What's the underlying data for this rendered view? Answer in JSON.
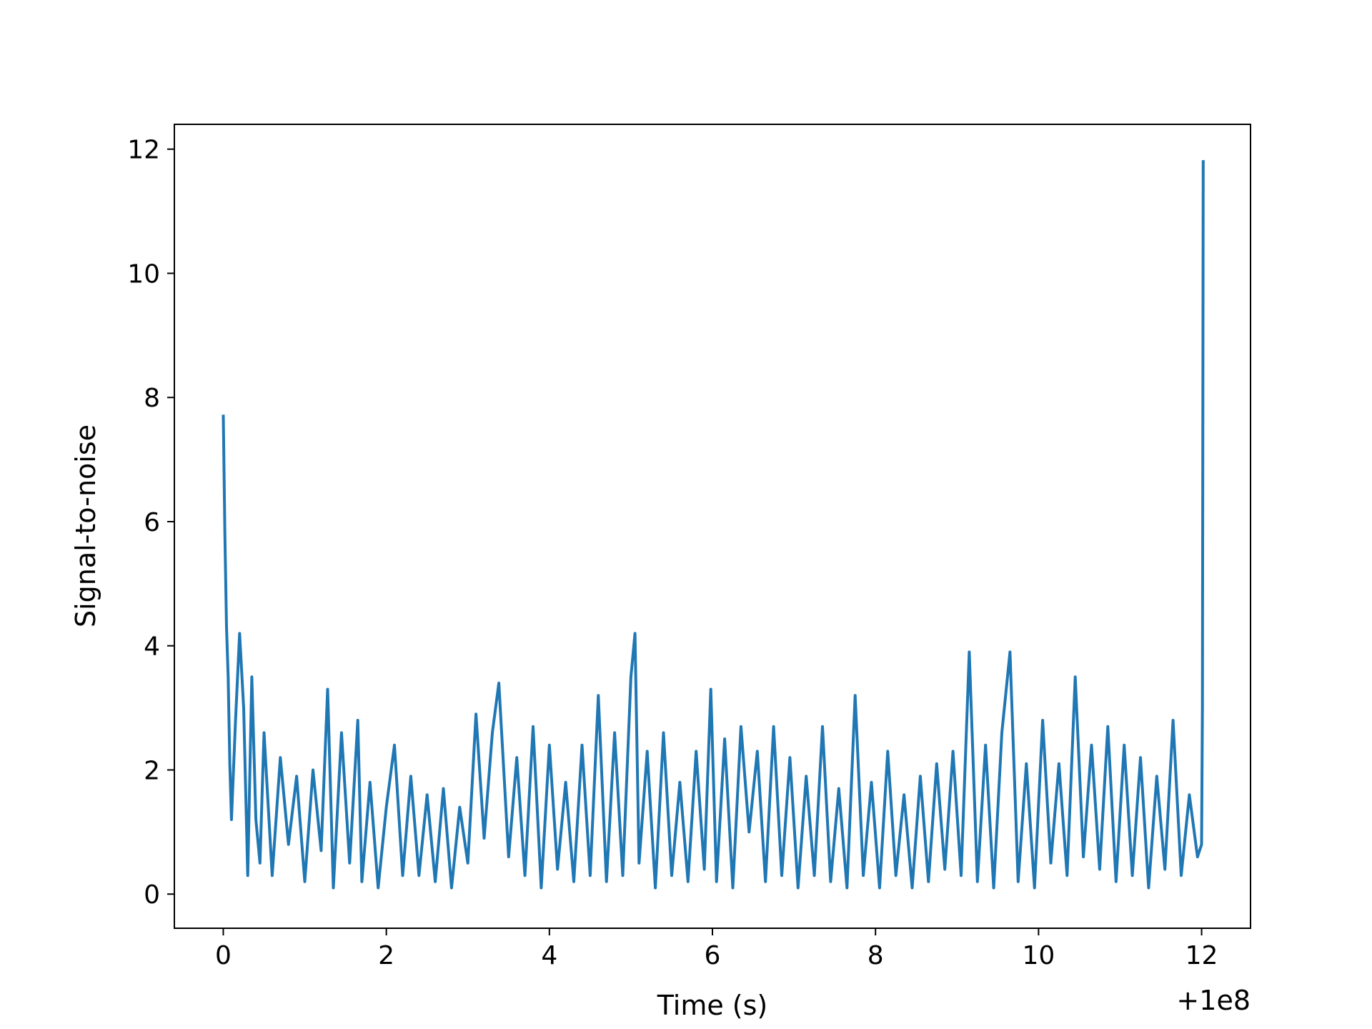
{
  "chart_data": {
    "type": "line",
    "title": "",
    "xlabel": "Time (s)",
    "ylabel": "Signal-to-noise",
    "x_offset_label": "+1e8",
    "xlim": [
      -0.6,
      12.6
    ],
    "ylim": [
      -0.55,
      12.4
    ],
    "xticks": [
      0,
      2,
      4,
      6,
      8,
      10,
      12
    ],
    "yticks": [
      0,
      2,
      4,
      6,
      8,
      10,
      12
    ],
    "grid": false,
    "legend": "none",
    "line_color": "#1f77b4",
    "series": [
      {
        "x": [
          0.0,
          0.02,
          0.04,
          0.06,
          0.08,
          0.1,
          0.15,
          0.2,
          0.25,
          0.3,
          0.35,
          0.4,
          0.45,
          0.5,
          0.6,
          0.7,
          0.8,
          0.9,
          1.0,
          1.1,
          1.2,
          1.28,
          1.35,
          1.45,
          1.55,
          1.65,
          1.7,
          1.8,
          1.9,
          2.0,
          2.1,
          2.2,
          2.3,
          2.4,
          2.5,
          2.6,
          2.7,
          2.8,
          2.9,
          3.0,
          3.1,
          3.2,
          3.3,
          3.38,
          3.5,
          3.6,
          3.7,
          3.8,
          3.9,
          4.0,
          4.1,
          4.2,
          4.3,
          4.4,
          4.5,
          4.6,
          4.7,
          4.8,
          4.9,
          5.0,
          5.05,
          5.1,
          5.2,
          5.3,
          5.4,
          5.5,
          5.6,
          5.7,
          5.8,
          5.9,
          5.98,
          6.05,
          6.15,
          6.25,
          6.35,
          6.45,
          6.55,
          6.65,
          6.75,
          6.85,
          6.95,
          7.05,
          7.15,
          7.25,
          7.35,
          7.45,
          7.55,
          7.65,
          7.75,
          7.85,
          7.95,
          8.05,
          8.15,
          8.25,
          8.35,
          8.45,
          8.55,
          8.65,
          8.75,
          8.85,
          8.95,
          9.05,
          9.15,
          9.25,
          9.35,
          9.45,
          9.55,
          9.65,
          9.75,
          9.85,
          9.95,
          10.05,
          10.15,
          10.25,
          10.35,
          10.45,
          10.55,
          10.65,
          10.75,
          10.85,
          10.95,
          11.05,
          11.15,
          11.25,
          11.35,
          11.45,
          11.55,
          11.65,
          11.75,
          11.85,
          11.95,
          12.0,
          12.01,
          12.02
        ],
        "y": [
          7.7,
          5.8,
          4.3,
          3.5,
          2.1,
          1.2,
          2.8,
          4.2,
          3.0,
          0.3,
          3.5,
          1.2,
          0.5,
          2.6,
          0.3,
          2.2,
          0.8,
          1.9,
          0.2,
          2.0,
          0.7,
          3.3,
          0.1,
          2.6,
          0.5,
          2.8,
          0.2,
          1.8,
          0.1,
          1.4,
          2.4,
          0.3,
          1.9,
          0.3,
          1.6,
          0.2,
          1.7,
          0.1,
          1.4,
          0.5,
          2.9,
          0.9,
          2.6,
          3.4,
          0.6,
          2.2,
          0.3,
          2.7,
          0.1,
          2.4,
          0.4,
          1.8,
          0.2,
          2.4,
          0.3,
          3.2,
          0.2,
          2.6,
          0.3,
          3.5,
          4.2,
          0.5,
          2.3,
          0.1,
          2.6,
          0.3,
          1.8,
          0.2,
          2.3,
          0.4,
          3.3,
          0.2,
          2.5,
          0.1,
          2.7,
          1.0,
          2.3,
          0.2,
          2.7,
          0.3,
          2.2,
          0.1,
          1.9,
          0.3,
          2.7,
          0.2,
          1.7,
          0.1,
          3.2,
          0.3,
          1.8,
          0.1,
          2.3,
          0.3,
          1.6,
          0.1,
          1.9,
          0.2,
          2.1,
          0.4,
          2.3,
          0.3,
          3.9,
          0.2,
          2.4,
          0.1,
          2.6,
          3.9,
          0.2,
          2.1,
          0.1,
          2.8,
          0.5,
          2.1,
          0.3,
          3.5,
          0.6,
          2.4,
          0.4,
          2.7,
          0.2,
          2.4,
          0.3,
          2.2,
          0.1,
          1.9,
          0.4,
          2.8,
          0.3,
          1.6,
          0.6,
          0.8,
          3.0,
          11.8
        ]
      }
    ]
  }
}
